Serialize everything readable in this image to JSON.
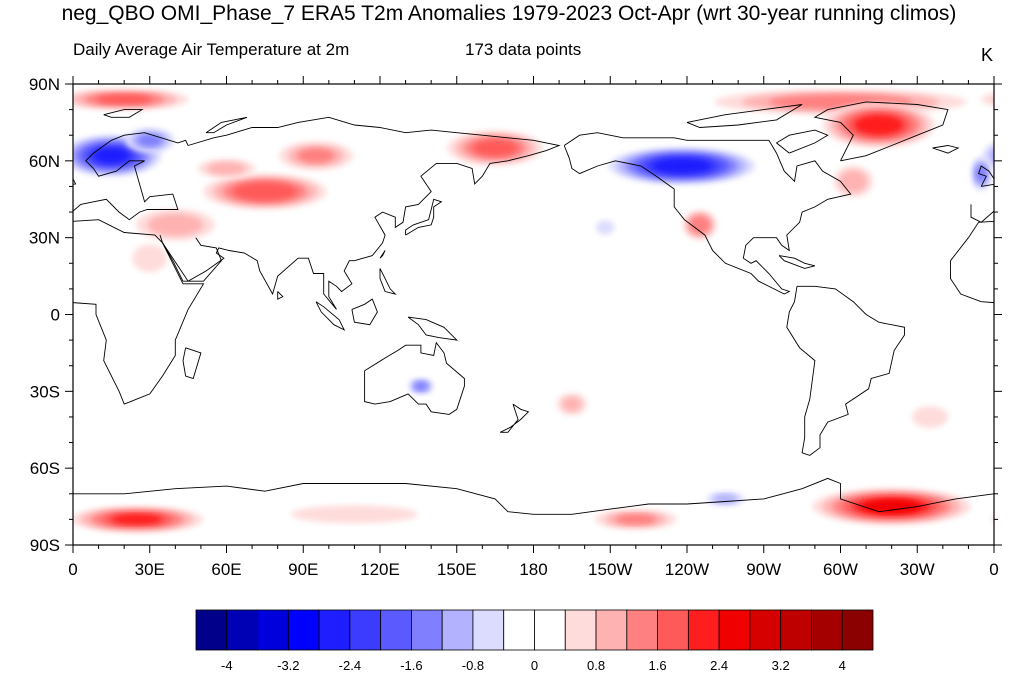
{
  "title": "neg_QBO OMI_Phase_7 ERA5 T2m Anomalies 1979-2023 Oct-Apr (wrt 30-year running climos)",
  "subtitle_left": "Daily Average Air Temperature at 2m",
  "subtitle_center": "173 data points",
  "unit": "K",
  "map": {
    "type": "global-anomaly-map",
    "projection": "cylindrical-equidistant",
    "lon_range": [
      0,
      360
    ],
    "lat_range": [
      -90,
      90
    ],
    "lat_ticks": [
      {
        "value": 90,
        "label": "90N"
      },
      {
        "value": 60,
        "label": "60N"
      },
      {
        "value": 30,
        "label": "30N"
      },
      {
        "value": 0,
        "label": "0"
      },
      {
        "value": -30,
        "label": "30S"
      },
      {
        "value": -60,
        "label": "60S"
      },
      {
        "value": -90,
        "label": "90S"
      }
    ],
    "lon_ticks": [
      {
        "value": 0,
        "label": "0"
      },
      {
        "value": 30,
        "label": "30E"
      },
      {
        "value": 60,
        "label": "60E"
      },
      {
        "value": 90,
        "label": "90E"
      },
      {
        "value": 120,
        "label": "120E"
      },
      {
        "value": 150,
        "label": "150E"
      },
      {
        "value": 180,
        "label": "180"
      },
      {
        "value": 210,
        "label": "150W"
      },
      {
        "value": 240,
        "label": "120W"
      },
      {
        "value": 270,
        "label": "90W"
      },
      {
        "value": 300,
        "label": "60W"
      },
      {
        "value": 330,
        "label": "30W"
      },
      {
        "value": 360,
        "label": "0"
      }
    ],
    "anomaly_regions": [
      {
        "name": "arctic-warm",
        "lon": 20,
        "lat": 84,
        "rlon": 30,
        "rlat": 5,
        "value": 1.6
      },
      {
        "name": "arctic-warm-east",
        "lon": 300,
        "lat": 83,
        "rlon": 60,
        "rlat": 6,
        "value": 1.4
      },
      {
        "name": "scandinavia-cold",
        "lon": 15,
        "lat": 62,
        "rlon": 22,
        "rlat": 9,
        "value": -2.4
      },
      {
        "name": "europe-cold-west",
        "lon": 30,
        "lat": 68,
        "rlon": 12,
        "rlat": 6,
        "value": -1.2
      },
      {
        "name": "central-asia-warm",
        "lon": 75,
        "lat": 48,
        "rlon": 28,
        "rlat": 8,
        "value": 1.9
      },
      {
        "name": "middle-east-warm",
        "lon": 40,
        "lat": 35,
        "rlon": 20,
        "rlat": 8,
        "value": 1.0
      },
      {
        "name": "siberia-warm",
        "lon": 95,
        "lat": 62,
        "rlon": 18,
        "rlat": 7,
        "value": 1.2
      },
      {
        "name": "west-siberia-warm",
        "lon": 60,
        "lat": 57,
        "rlon": 15,
        "rlat": 5,
        "value": 0.9
      },
      {
        "name": "east-siberia-warm",
        "lon": 165,
        "lat": 65,
        "rlon": 22,
        "rlat": 8,
        "value": 1.7
      },
      {
        "name": "canada-cold",
        "lon": 238,
        "lat": 58,
        "rlon": 32,
        "rlat": 8,
        "value": -2.6
      },
      {
        "name": "greenland-warm",
        "lon": 315,
        "lat": 74,
        "rlon": 25,
        "rlat": 10,
        "value": 2.2
      },
      {
        "name": "us-west-warm",
        "lon": 245,
        "lat": 35,
        "rlon": 8,
        "rlat": 7,
        "value": 1.5
      },
      {
        "name": "atlantic-north-warm",
        "lon": 305,
        "lat": 52,
        "rlon": 10,
        "rlat": 8,
        "value": 1.0
      },
      {
        "name": "pacific-cold-spot",
        "lon": 208,
        "lat": 34,
        "rlon": 5,
        "rlat": 4,
        "value": -0.7
      },
      {
        "name": "australia-cold",
        "lon": 136,
        "lat": -28,
        "rlon": 6,
        "rlat": 4,
        "value": -1.3
      },
      {
        "name": "south-atlantic-warm",
        "lon": 335,
        "lat": -40,
        "rlon": 10,
        "rlat": 6,
        "value": 0.7
      },
      {
        "name": "south-pacific-warm",
        "lon": 195,
        "lat": -35,
        "rlon": 8,
        "rlat": 6,
        "value": 0.8
      },
      {
        "name": "africa-warm",
        "lon": 30,
        "lat": 22,
        "rlon": 10,
        "rlat": 8,
        "value": 0.6
      },
      {
        "name": "weddell-warm",
        "lon": 320,
        "lat": -75,
        "rlon": 35,
        "rlat": 8,
        "value": 2.4
      },
      {
        "name": "east-antarctic-warm",
        "lon": 25,
        "lat": -80,
        "rlon": 30,
        "rlat": 6,
        "value": 2.0
      },
      {
        "name": "ross-warm",
        "lon": 220,
        "lat": -80,
        "rlon": 20,
        "rlat": 5,
        "value": 1.2
      },
      {
        "name": "southern-ocean-warm",
        "lon": 110,
        "lat": -78,
        "rlon": 35,
        "rlat": 5,
        "value": 0.7
      },
      {
        "name": "bellingshausen-cool",
        "lon": 255,
        "lat": -72,
        "rlon": 10,
        "rlat": 4,
        "value": -0.8
      },
      {
        "name": "atlantic-cold-east",
        "lon": 355,
        "lat": 55,
        "rlon": 5,
        "rlat": 8,
        "value": -1.3
      }
    ],
    "coastline_color": "#000000"
  },
  "colorbar": {
    "colors": [
      "#00008b",
      "#0000b4",
      "#0000dc",
      "#0000ff",
      "#1e1eff",
      "#3c3cff",
      "#5a5aff",
      "#8080ff",
      "#b2b2ff",
      "#dcdcff",
      "#ffffff",
      "#ffffff",
      "#ffdcdc",
      "#ffb2b2",
      "#ff8080",
      "#ff5a5a",
      "#ff1e1e",
      "#f00000",
      "#d70000",
      "#be0000",
      "#a50000",
      "#8b0000"
    ],
    "tick_values": [
      -4,
      -3.2,
      -2.4,
      -1.6,
      -0.8,
      0,
      0.8,
      1.6,
      2.4,
      3.2,
      4
    ],
    "tick_labels": [
      "-4",
      "-3.2",
      "-2.4",
      "-1.6",
      "-0.8",
      "0",
      "0.8",
      "1.6",
      "2.4",
      "3.2",
      "4"
    ],
    "levels": [
      -4,
      -3.6,
      -3.2,
      -2.8,
      -2.4,
      -2,
      -1.6,
      -1.2,
      -0.8,
      -0.4,
      0,
      0.4,
      0.8,
      1.2,
      1.6,
      2,
      2.4,
      2.8,
      3.2,
      3.6,
      4
    ]
  }
}
